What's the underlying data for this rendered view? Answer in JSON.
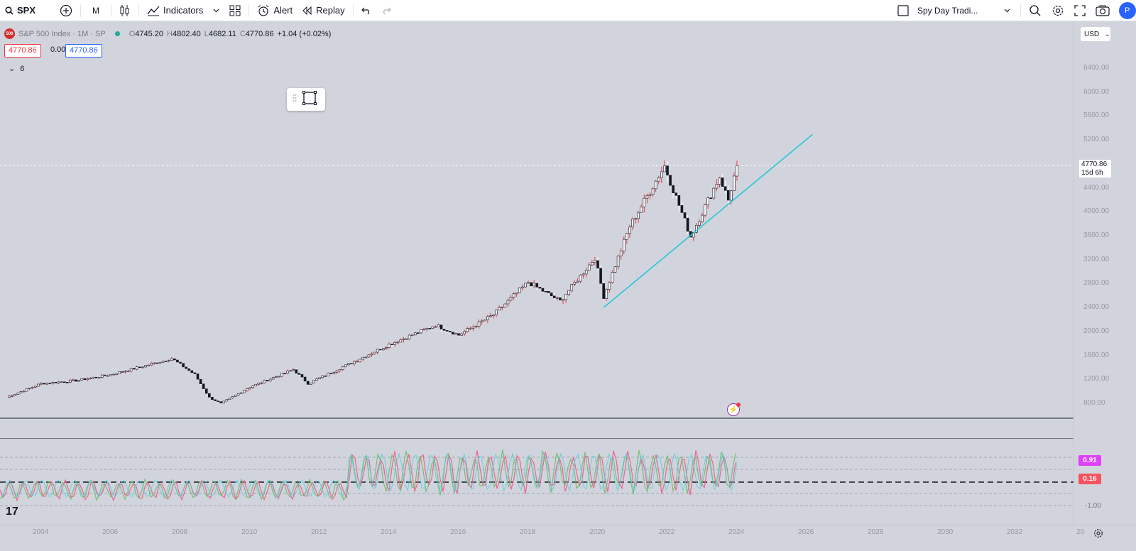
{
  "toolbar": {
    "symbol": "SPX",
    "interval": "M",
    "indicators_label": "Indicators",
    "alert_label": "Alert",
    "replay_label": "Replay",
    "layout_name": "Spy Day Tradi...",
    "avatar_initial": "P"
  },
  "legend": {
    "logo_text": "500",
    "title": "S&P 500 Index · 1M · SP",
    "open": "4745.20",
    "high": "4802.40",
    "low": "4682.11",
    "close": "4770.86",
    "change": "+1.04 (+0.02%)",
    "price_sell": "4770.86",
    "spread": "0.00",
    "price_buy": "4770.86",
    "indicators_count": "6"
  },
  "price_axis": {
    "currency": "USD",
    "ticks": [
      "6400.00",
      "6000.00",
      "5600.00",
      "5200.00",
      "4400.00",
      "4000.00",
      "3600.00",
      "3200.00",
      "2800.00",
      "2400.00",
      "2000.00",
      "1600.00",
      "1200.00",
      "800.00"
    ],
    "last_price": "4770.86",
    "countdown": "15d 6h"
  },
  "oscillator": {
    "upper_value": "0.91",
    "lower_value": "0.16",
    "min_tick": "-1.00",
    "upper_color": "#e040fb",
    "lower_color": "#f7525f"
  },
  "time_axis": {
    "ticks": [
      "2004",
      "2006",
      "2008",
      "2010",
      "2012",
      "2014",
      "2016",
      "2018",
      "2020",
      "2022",
      "2024",
      "2026",
      "2028",
      "2030",
      "2032",
      "20"
    ]
  },
  "chart_data": {
    "type": "candlestick",
    "series_interval": "1M",
    "ylim": [
      600,
      6600
    ],
    "monthly_close_anchors": [
      {
        "date": "2003-01",
        "value": 900
      },
      {
        "date": "2004-01",
        "value": 1130
      },
      {
        "date": "2005-01",
        "value": 1180
      },
      {
        "date": "2006-01",
        "value": 1280
      },
      {
        "date": "2007-01",
        "value": 1430
      },
      {
        "date": "2007-10",
        "value": 1549
      },
      {
        "date": "2008-06",
        "value": 1280
      },
      {
        "date": "2008-11",
        "value": 896
      },
      {
        "date": "2009-03",
        "value": 797
      },
      {
        "date": "2010-01",
        "value": 1073
      },
      {
        "date": "2011-04",
        "value": 1363
      },
      {
        "date": "2011-09",
        "value": 1131
      },
      {
        "date": "2013-01",
        "value": 1498
      },
      {
        "date": "2014-01",
        "value": 1782
      },
      {
        "date": "2015-05",
        "value": 2107
      },
      {
        "date": "2016-01",
        "value": 1940
      },
      {
        "date": "2017-01",
        "value": 2279
      },
      {
        "date": "2018-01",
        "value": 2824
      },
      {
        "date": "2018-12",
        "value": 2507
      },
      {
        "date": "2019-12",
        "value": 3231
      },
      {
        "date": "2020-03",
        "value": 2585
      },
      {
        "date": "2020-12",
        "value": 3756
      },
      {
        "date": "2021-12",
        "value": 4766
      },
      {
        "date": "2022-09",
        "value": 3586
      },
      {
        "date": "2023-07",
        "value": 4589
      },
      {
        "date": "2023-10",
        "value": 4194
      },
      {
        "date": "2024-01",
        "value": 4771
      }
    ],
    "trendline": [
      {
        "date": "2020-03",
        "value": 2400
      },
      {
        "date": "2026-03",
        "value": 5290
      }
    ],
    "trendline_color": "#26c6da",
    "up_color": "#ffffff",
    "down_color": "#131722",
    "wick_up_color": "#f23645",
    "wick_down_color": "#ffffff"
  }
}
